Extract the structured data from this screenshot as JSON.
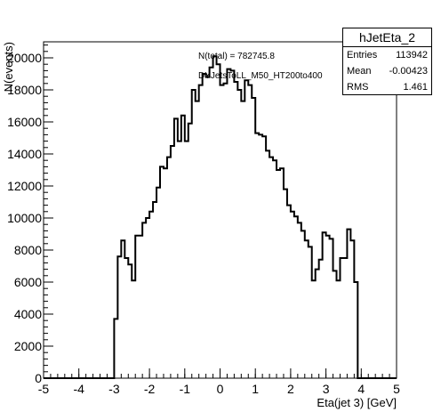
{
  "chart_data": {
    "type": "bar",
    "histogram": true,
    "title": "",
    "xlabel": "Eta(jet 3) [GeV]",
    "ylabel": "N(events)",
    "xlim": [
      -5,
      5
    ],
    "ylim": [
      0,
      21000
    ],
    "xticks": [
      "-5",
      "-4",
      "-3",
      "-2",
      "-1",
      "0",
      "1",
      "2",
      "3",
      "4",
      "5"
    ],
    "yticks": [
      "0",
      "2000",
      "4000",
      "6000",
      "8000",
      "10000",
      "12000",
      "14000",
      "16000",
      "18000",
      "20000"
    ],
    "bin_edges_from": -3.0,
    "bin_width": 0.1,
    "values": [
      3700,
      7600,
      8600,
      7500,
      7100,
      6100,
      8900,
      8900,
      9700,
      10000,
      10400,
      11000,
      11900,
      13200,
      13100,
      13800,
      14500,
      16200,
      14800,
      16400,
      14800,
      15900,
      18000,
      17300,
      18300,
      19000,
      18800,
      19400,
      20100,
      19600,
      18300,
      18400,
      19300,
      19200,
      18500,
      18000,
      17300,
      18600,
      18300,
      17500,
      15300,
      15200,
      15100,
      14200,
      13800,
      13600,
      13000,
      13100,
      11800,
      10800,
      10400,
      10100,
      9700,
      9200,
      8600,
      8200,
      6100,
      6800,
      7400,
      9100,
      8900,
      8700,
      6700,
      6100,
      7500,
      7500,
      9300,
      8600,
      6000,
      0
    ],
    "grid": false,
    "legend": "none"
  },
  "annotations": {
    "total": "N(total) = 782745.8",
    "dataset": "DYJetsToLL_M50_HT200to400"
  },
  "stats": {
    "title": "hJetEta_2",
    "rows": [
      {
        "label": "Entries",
        "value": "113942"
      },
      {
        "label": "Mean",
        "value": "-0.00423"
      },
      {
        "label": "RMS",
        "value": "1.461"
      }
    ]
  }
}
